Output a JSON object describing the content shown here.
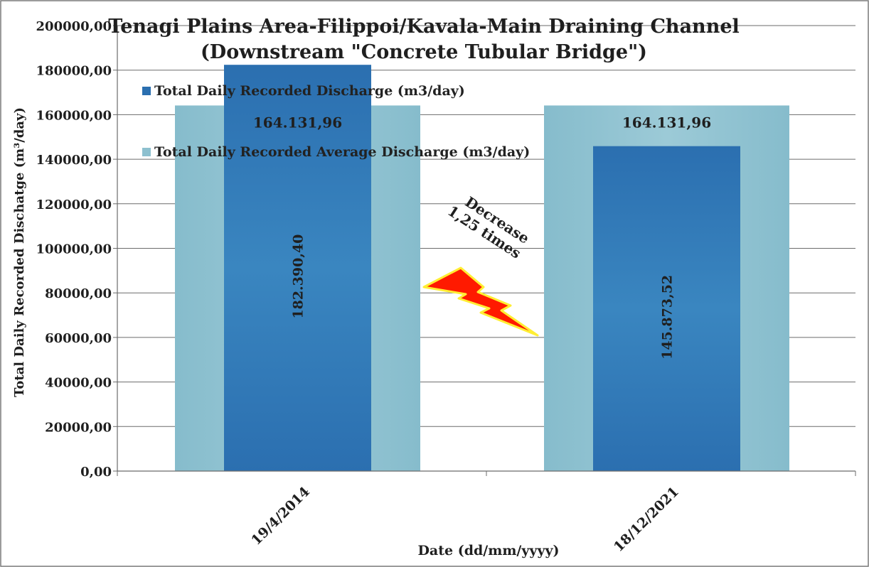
{
  "chart_data": {
    "type": "bar",
    "title": "Tenagi Plains Area-Filippoi/Kavala-Main Draining Channel",
    "subtitle": "(Downstream \"Concrete Tubular Bridge\")",
    "xlabel": "Date (dd/mm/yyyy)",
    "ylabel": "Total Daily Recorded Dischatge (m³/day)",
    "ylim": [
      0,
      200000
    ],
    "ytick_step": 20000,
    "yticks": [
      "0,00",
      "20000,00",
      "40000,00",
      "60000,00",
      "80000,00",
      "100000,00",
      "120000,00",
      "140000,00",
      "160000,00",
      "180000,00",
      "200000,00"
    ],
    "grid": true,
    "legend_placement": "top-left",
    "categories": [
      "19/4/2014",
      "18/12/2021"
    ],
    "series": [
      {
        "name": "Total Daily Recorded Average Discharge (m3/day)",
        "color": "#8dc0cf",
        "values": [
          164131.96,
          164131.96
        ],
        "labels": [
          "164.131,96",
          "164.131,96"
        ]
      },
      {
        "name": "Total Daily Recorded Discharge (m3/day)",
        "color": "#2f78b5",
        "values": [
          182390.4,
          145873.52
        ],
        "labels": [
          "182.390,40",
          "145.873,52"
        ]
      }
    ],
    "annotation": {
      "lines": [
        "Decrease",
        "1,25 times"
      ],
      "icon": "lightning-bolt-icon",
      "icon_color": "#ff1a00",
      "icon_outline": "#ffee33"
    }
  }
}
